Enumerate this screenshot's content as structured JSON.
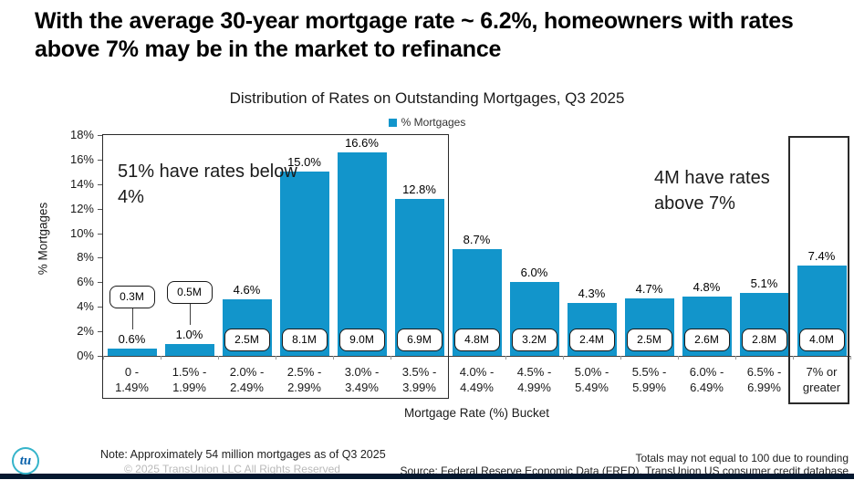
{
  "header": {
    "title": "With the average 30-year mortgage rate ~ 6.2%, homeowners with rates above 7% may be in the market to refinance"
  },
  "chart_data": {
    "type": "bar",
    "title": "Distribution of Rates on Outstanding Mortgages, Q3 2025",
    "legend": [
      {
        "label": "% Mortgages",
        "color": "#1295CB"
      }
    ],
    "legend_position": "top",
    "xlabel": "Mortgage Rate (%) Bucket",
    "ylabel": "% Mortgages",
    "ylim": [
      0,
      18
    ],
    "grid": false,
    "yticks": [
      "0%",
      "2%",
      "4%",
      "6%",
      "8%",
      "10%",
      "12%",
      "14%",
      "16%",
      "18%"
    ],
    "categories": [
      "0 -\n1.49%",
      "1.5% -\n1.99%",
      "2.0% -\n2.49%",
      "2.5% -\n2.99%",
      "3.0% -\n3.49%",
      "3.5% -\n3.99%",
      "4.0% -\n4.49%",
      "4.5% -\n4.99%",
      "5.0% -\n5.49%",
      "5.5% -\n5.99%",
      "6.0% -\n6.49%",
      "6.5% -\n6.99%",
      "7% or\ngreater"
    ],
    "values": [
      0.6,
      1.0,
      4.6,
      15.0,
      16.6,
      12.8,
      8.7,
      6.0,
      4.3,
      4.7,
      4.8,
      5.1,
      7.4
    ],
    "value_labels": [
      "0.6%",
      "1.0%",
      "4.6%",
      "15.0%",
      "16.6%",
      "12.8%",
      "8.7%",
      "6.0%",
      "4.3%",
      "4.7%",
      "4.8%",
      "5.1%",
      "7.4%"
    ],
    "count_labels": [
      "0.3M",
      "0.5M",
      "2.5M",
      "8.1M",
      "9.0M",
      "6.9M",
      "4.8M",
      "3.2M",
      "2.4M",
      "2.5M",
      "2.6M",
      "2.8M",
      "4.0M"
    ],
    "callout_above_indices": [
      0,
      1
    ],
    "bar_color": "#1295CB",
    "annotations": [
      {
        "text": "51% have rates below 4%",
        "side": "left"
      },
      {
        "text": "4M have rates above 7%",
        "side": "right"
      }
    ]
  },
  "footer": {
    "logo_text": "tu",
    "note": "Note: Approximately 54 million mortgages as of Q3 2025",
    "copyright": "© 2025 TransUnion LLC All Rights Reserved",
    "rounding_note": "Totals may not equal to 100 due to rounding",
    "source": "Source: Federal Reserve Economic Data (FRED), TransUnion US consumer credit database"
  },
  "colors": {
    "bar": "#1295CB",
    "bottom_bar": "#05182F",
    "logo_ring": "#35B4CA",
    "logo_text": "#0A62AB"
  }
}
